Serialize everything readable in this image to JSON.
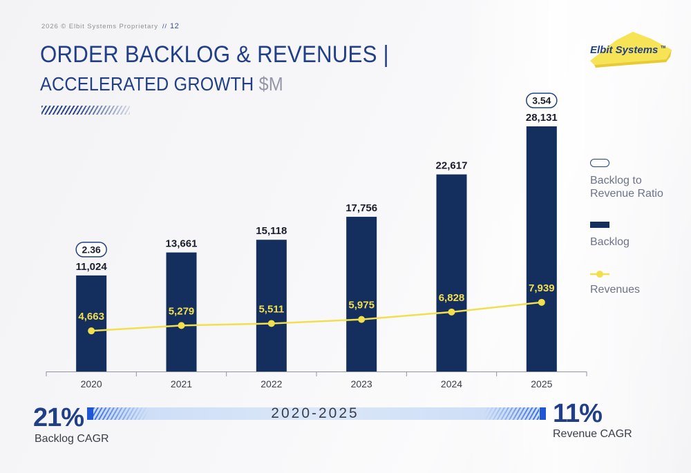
{
  "header": {
    "proprietary": "2026 © Elbit Systems Proprietary",
    "separator": "//",
    "page_number": "12",
    "title_line1": "ORDER BACKLOG & REVENUES |",
    "title_line2_main": "ACCELERATED GROWTH ",
    "title_line2_unit": "$M",
    "logo_text": "Elbit Systems",
    "logo_mark": "TM"
  },
  "legend": {
    "ratio": "Backlog to Revenue Ratio",
    "backlog": "Backlog",
    "revenues": "Revenues"
  },
  "cagr": {
    "backlog_value": "21%",
    "backlog_label": "Backlog CAGR",
    "revenue_value": "11%",
    "revenue_label": "Revenue CAGR",
    "period": "2020-2025"
  },
  "colors": {
    "bar": "#142f5e",
    "revenue_line": "#f2df4e",
    "revenue_label": "#f2df4e",
    "title": "#213f86",
    "accent_blue": "#1e56d6"
  },
  "chart_data": {
    "type": "bar",
    "categories": [
      "2020",
      "2021",
      "2022",
      "2023",
      "2024",
      "2025"
    ],
    "series": [
      {
        "name": "Backlog",
        "type": "bar",
        "values": [
          11024,
          13661,
          15118,
          17756,
          22617,
          28131
        ]
      },
      {
        "name": "Revenues",
        "type": "line",
        "values": [
          4663,
          5279,
          5511,
          5975,
          6828,
          7939
        ]
      }
    ],
    "bar_labels": [
      "11,024",
      "13,661",
      "15,118",
      "17,756",
      "22,617",
      "28,131"
    ],
    "line_labels": [
      "4,663",
      "5,279",
      "5,511",
      "5,975",
      "6,828",
      "7,939"
    ],
    "ratio_badges": [
      {
        "category": "2020",
        "label": "2.36"
      },
      {
        "category": "2025",
        "label": "3.54"
      }
    ],
    "ylim": [
      0,
      32000
    ],
    "grid": false,
    "legend_position": "right"
  }
}
